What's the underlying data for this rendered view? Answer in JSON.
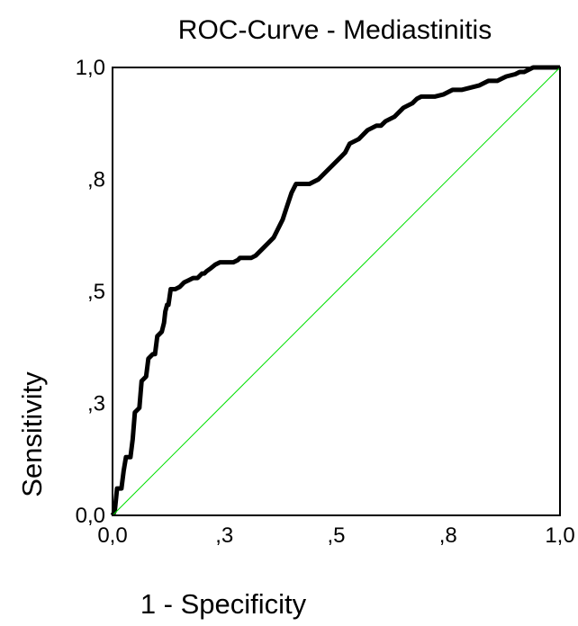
{
  "chart_data": {
    "type": "line",
    "title": "ROC-Curve - Mediastinitis",
    "xlabel": "1 - Specificity",
    "ylabel": "Sensitivity",
    "xlim": [
      0,
      1
    ],
    "ylim": [
      0,
      1
    ],
    "x_ticks": [
      0,
      0.25,
      0.5,
      0.75,
      1
    ],
    "x_tick_labels": [
      "0,0",
      ",3",
      ",5",
      ",8",
      "1,0"
    ],
    "y_ticks": [
      0,
      0.25,
      0.5,
      0.75,
      1
    ],
    "y_tick_labels": [
      "0,0",
      ",3",
      ",5",
      ",8",
      "1,0"
    ],
    "grid": false,
    "series": [
      {
        "color": "#000000",
        "points": [
          [
            0.0,
            0.0
          ],
          [
            0.005,
            0.01
          ],
          [
            0.01,
            0.06
          ],
          [
            0.02,
            0.06
          ],
          [
            0.025,
            0.1
          ],
          [
            0.03,
            0.13
          ],
          [
            0.04,
            0.13
          ],
          [
            0.045,
            0.17
          ],
          [
            0.05,
            0.23
          ],
          [
            0.06,
            0.24
          ],
          [
            0.065,
            0.3
          ],
          [
            0.075,
            0.31
          ],
          [
            0.08,
            0.35
          ],
          [
            0.09,
            0.36
          ],
          [
            0.095,
            0.36
          ],
          [
            0.1,
            0.4
          ],
          [
            0.11,
            0.41
          ],
          [
            0.115,
            0.43
          ],
          [
            0.118,
            0.455
          ],
          [
            0.122,
            0.47
          ],
          [
            0.125,
            0.47
          ],
          [
            0.13,
            0.505
          ],
          [
            0.135,
            0.505
          ],
          [
            0.14,
            0.505
          ],
          [
            0.15,
            0.51
          ],
          [
            0.16,
            0.52
          ],
          [
            0.17,
            0.525
          ],
          [
            0.18,
            0.53
          ],
          [
            0.19,
            0.53
          ],
          [
            0.2,
            0.54
          ],
          [
            0.205,
            0.54
          ],
          [
            0.21,
            0.545
          ],
          [
            0.22,
            0.552
          ],
          [
            0.23,
            0.56
          ],
          [
            0.24,
            0.565
          ],
          [
            0.25,
            0.565
          ],
          [
            0.26,
            0.565
          ],
          [
            0.27,
            0.565
          ],
          [
            0.28,
            0.57
          ],
          [
            0.285,
            0.575
          ],
          [
            0.29,
            0.575
          ],
          [
            0.3,
            0.575
          ],
          [
            0.31,
            0.575
          ],
          [
            0.32,
            0.58
          ],
          [
            0.33,
            0.59
          ],
          [
            0.34,
            0.6
          ],
          [
            0.35,
            0.61
          ],
          [
            0.36,
            0.62
          ],
          [
            0.37,
            0.64
          ],
          [
            0.38,
            0.66
          ],
          [
            0.39,
            0.69
          ],
          [
            0.4,
            0.72
          ],
          [
            0.41,
            0.74
          ],
          [
            0.42,
            0.74
          ],
          [
            0.43,
            0.74
          ],
          [
            0.44,
            0.74
          ],
          [
            0.45,
            0.745
          ],
          [
            0.46,
            0.75
          ],
          [
            0.47,
            0.76
          ],
          [
            0.48,
            0.77
          ],
          [
            0.49,
            0.78
          ],
          [
            0.5,
            0.79
          ],
          [
            0.51,
            0.8
          ],
          [
            0.52,
            0.81
          ],
          [
            0.525,
            0.82
          ],
          [
            0.53,
            0.83
          ],
          [
            0.54,
            0.835
          ],
          [
            0.55,
            0.84
          ],
          [
            0.56,
            0.85
          ],
          [
            0.57,
            0.86
          ],
          [
            0.58,
            0.865
          ],
          [
            0.59,
            0.87
          ],
          [
            0.6,
            0.87
          ],
          [
            0.61,
            0.88
          ],
          [
            0.62,
            0.885
          ],
          [
            0.63,
            0.89
          ],
          [
            0.64,
            0.9
          ],
          [
            0.65,
            0.91
          ],
          [
            0.66,
            0.915
          ],
          [
            0.67,
            0.92
          ],
          [
            0.68,
            0.93
          ],
          [
            0.69,
            0.935
          ],
          [
            0.7,
            0.935
          ],
          [
            0.72,
            0.935
          ],
          [
            0.74,
            0.94
          ],
          [
            0.76,
            0.95
          ],
          [
            0.78,
            0.95
          ],
          [
            0.8,
            0.955
          ],
          [
            0.82,
            0.96
          ],
          [
            0.83,
            0.965
          ],
          [
            0.84,
            0.97
          ],
          [
            0.85,
            0.97
          ],
          [
            0.86,
            0.97
          ],
          [
            0.87,
            0.975
          ],
          [
            0.88,
            0.98
          ],
          [
            0.9,
            0.985
          ],
          [
            0.91,
            0.99
          ],
          [
            0.92,
            0.99
          ],
          [
            0.93,
            0.995
          ],
          [
            0.94,
            1.0
          ],
          [
            0.95,
            1.0
          ],
          [
            0.96,
            1.0
          ],
          [
            0.97,
            1.0
          ],
          [
            0.98,
            1.0
          ],
          [
            0.99,
            1.0
          ],
          [
            1.0,
            1.0
          ]
        ]
      },
      {
        "color": "#00e000",
        "points": [
          [
            0,
            0
          ],
          [
            1,
            1
          ]
        ]
      }
    ]
  }
}
